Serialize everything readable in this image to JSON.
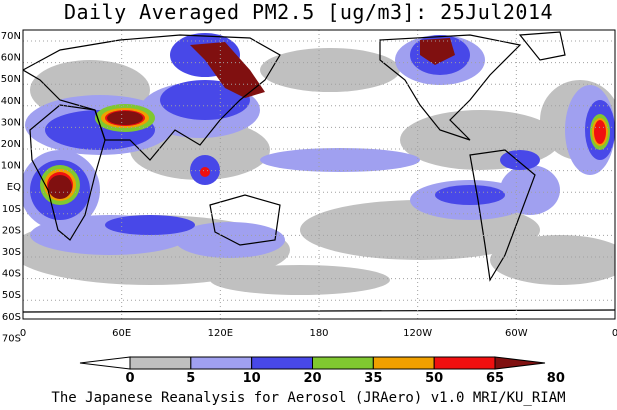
{
  "title": "Daily Averaged PM2.5 [ug/m3]: 25Jul2014",
  "footer": "The Japanese Reanalysis for Aerosol (JRAero) v1.0 MRI/KU_RIAM",
  "lat_labels": [
    "70N",
    "60N",
    "50N",
    "40N",
    "30N",
    "20N",
    "10N",
    "EQ",
    "10S",
    "20S",
    "30S",
    "40S",
    "50S",
    "60S",
    "70S"
  ],
  "lon_labels": [
    "0",
    "60E",
    "120E",
    "180",
    "120W",
    "60W",
    "0"
  ],
  "colorbar": {
    "tick_labels": [
      "0",
      "5",
      "10",
      "20",
      "35",
      "50",
      "65",
      "80"
    ],
    "colors": [
      "#ffffff",
      "#c0c0c0",
      "#a0a0f0",
      "#4848e8",
      "#80c830",
      "#f0a000",
      "#f01010",
      "#801010"
    ]
  }
}
